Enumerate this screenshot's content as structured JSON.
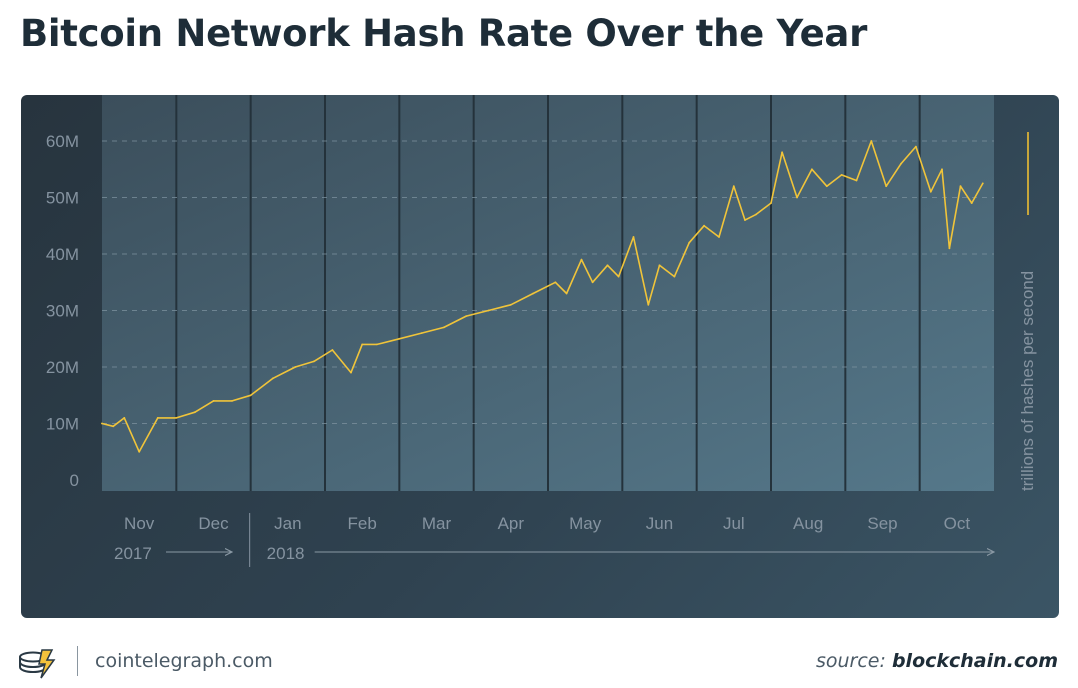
{
  "chart_data": {
    "type": "line",
    "title": "Bitcoin Network Hash Rate Over the Year",
    "xlabel": "",
    "ylabel": "trillions of hashes per second",
    "ylim": [
      0,
      65
    ],
    "y_ticks": [
      {
        "value": 0,
        "label": "0"
      },
      {
        "value": 10,
        "label": "10M"
      },
      {
        "value": 20,
        "label": "20M"
      },
      {
        "value": 30,
        "label": "30M"
      },
      {
        "value": 40,
        "label": "40M"
      },
      {
        "value": 50,
        "label": "50M"
      },
      {
        "value": 60,
        "label": "60M"
      }
    ],
    "months": [
      "Nov",
      "Dec",
      "Jan",
      "Feb",
      "Mar",
      "Apr",
      "May",
      "Jun",
      "Jul",
      "Aug",
      "Sep",
      "Oct"
    ],
    "years": [
      "2017",
      "2018"
    ],
    "grid": true,
    "series_color": "#f0c43a",
    "series": [
      {
        "name": "",
        "x_months": [
          0,
          0.15,
          0.3,
          0.5,
          0.75,
          1.0,
          1.25,
          1.5,
          1.75,
          2.0,
          2.3,
          2.6,
          2.85,
          3.1,
          3.35,
          3.5,
          3.7,
          4.0,
          4.3,
          4.6,
          4.9,
          5.2,
          5.5,
          5.8,
          6.1,
          6.25,
          6.45,
          6.6,
          6.8,
          6.95,
          7.15,
          7.35,
          7.5,
          7.7,
          7.9,
          8.1,
          8.3,
          8.5,
          8.65,
          8.8,
          9.0,
          9.15,
          9.35,
          9.55,
          9.75,
          9.95,
          10.15,
          10.35,
          10.55,
          10.75,
          10.95,
          11.15,
          11.3,
          11.4,
          11.55,
          11.7,
          11.85
        ],
        "values": [
          10,
          9.5,
          11,
          5,
          11,
          11,
          12,
          14,
          14,
          15,
          18,
          20,
          21,
          23,
          19,
          24,
          24,
          25,
          26,
          27,
          29,
          30,
          31,
          33,
          35,
          33,
          39,
          35,
          38,
          36,
          43,
          31,
          38,
          36,
          42,
          45,
          43,
          52,
          46,
          47,
          49,
          58,
          50,
          55,
          52,
          54,
          53,
          60,
          52,
          56,
          59,
          51,
          55,
          41,
          52,
          49,
          52.5
        ]
      }
    ]
  },
  "footer": {
    "site": "cointelegraph.com",
    "source_prefix": "source:",
    "source_name": "blockchain.com"
  }
}
